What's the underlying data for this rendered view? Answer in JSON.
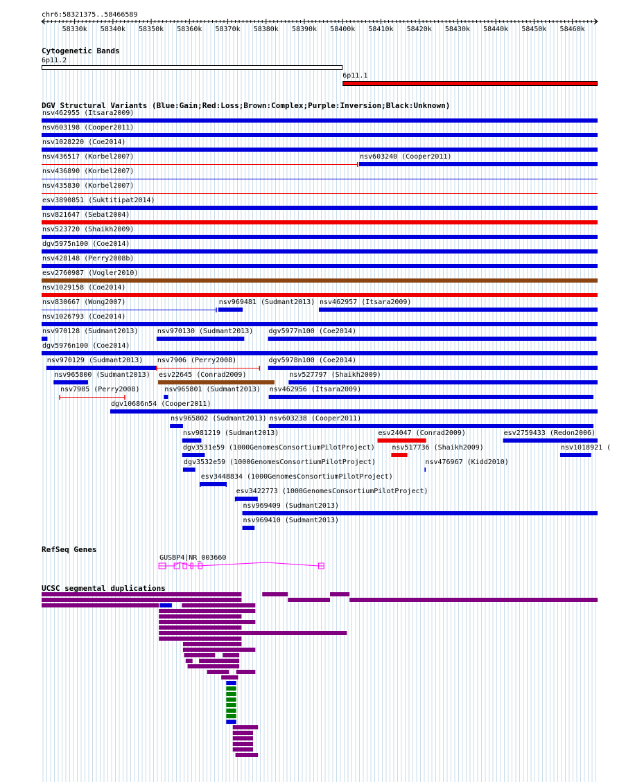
{
  "region": {
    "label": "chr6:58321375..58466589",
    "start": 58321375,
    "end": 58466589,
    "ticks": [
      {
        "pos": 58330000,
        "label": "58330k"
      },
      {
        "pos": 58340000,
        "label": "58340k"
      },
      {
        "pos": 58350000,
        "label": "58350k"
      },
      {
        "pos": 58360000,
        "label": "58360k"
      },
      {
        "pos": 58370000,
        "label": "58370k"
      },
      {
        "pos": 58380000,
        "label": "58380k"
      },
      {
        "pos": 58390000,
        "label": "58390k"
      },
      {
        "pos": 58400000,
        "label": "58400k"
      },
      {
        "pos": 58410000,
        "label": "58410k"
      },
      {
        "pos": 58420000,
        "label": "58420k"
      },
      {
        "pos": 58430000,
        "label": "58430k"
      },
      {
        "pos": 58440000,
        "label": "58440k"
      },
      {
        "pos": 58450000,
        "label": "58450k"
      },
      {
        "pos": 58460000,
        "label": "58460k"
      }
    ]
  },
  "colors": {
    "gain": "#0000dd",
    "loss": "#ee0000",
    "complex": "#8b4513",
    "inversion": "#800080",
    "unknown": "#000000",
    "grid": "#c8dce8",
    "gene": "#ff00ff",
    "segdup_purple": "#800080",
    "segdup_blue": "#0000dd",
    "segdup_green": "#008000",
    "band_loss": "#ee0000"
  },
  "tracks": {
    "cytoband": {
      "title": "Cytogenetic Bands",
      "features": [
        {
          "name": "6p11.2",
          "start": 58321375,
          "end": 58400000,
          "style": "outline"
        },
        {
          "name": "6p11.1",
          "start": 58400000,
          "end": 58466589,
          "style": "filled"
        }
      ]
    },
    "dgv": {
      "title": "DGV Structural Variants (Blue:Gain;Red:Loss;Brown:Complex;Purple:Inversion;Black:Unknown)",
      "features": [
        {
          "name": "nsv462955 (Itsara2009)",
          "start": 58321375,
          "end": 58466589,
          "type": "gain",
          "row": 0
        },
        {
          "name": "nsv603198 (Cooper2011)",
          "start": 58321375,
          "end": 58466589,
          "type": "gain",
          "row": 1
        },
        {
          "name": "nsv1028220 (Coe2014)",
          "start": 58321375,
          "end": 58466589,
          "type": "gain",
          "row": 2
        },
        {
          "name": "nsv436517 (Korbel2007)",
          "start": 58321375,
          "end": 58403900,
          "type": "loss",
          "row": 3,
          "style": "line",
          "endMark": true
        },
        {
          "name": "nsv603240 (Cooper2011)",
          "start": 58404300,
          "end": 58466589,
          "type": "gain",
          "row": 3
        },
        {
          "name": "nsv436890 (Korbel2007)",
          "start": 58321375,
          "end": 58466589,
          "type": "gain",
          "row": 4,
          "style": "line"
        },
        {
          "name": "nsv435830 (Korbel2007)",
          "start": 58321375,
          "end": 58466589,
          "type": "loss",
          "row": 5,
          "style": "line"
        },
        {
          "name": "esv3890851 (Suktitipat2014)",
          "start": 58321375,
          "end": 58466589,
          "type": "gain",
          "row": 6
        },
        {
          "name": "nsv821647 (Sebat2004)",
          "start": 58321375,
          "end": 58466589,
          "type": "loss",
          "row": 7
        },
        {
          "name": "nsv523720 (Shaikh2009)",
          "start": 58321375,
          "end": 58466589,
          "type": "gain",
          "row": 8
        },
        {
          "name": "dgv5975n100 (Coe2014)",
          "start": 58321375,
          "end": 58466589,
          "type": "gain",
          "row": 9
        },
        {
          "name": "nsv428148 (Perry2008b)",
          "start": 58321375,
          "end": 58466589,
          "type": "gain",
          "row": 10
        },
        {
          "name": "esv2760987 (Vogler2010)",
          "start": 58321375,
          "end": 58466589,
          "type": "complex",
          "row": 11
        },
        {
          "name": "nsv1029158 (Coe2014)",
          "start": 58321375,
          "end": 58466589,
          "type": "loss",
          "row": 12
        },
        {
          "name": "nsv830667 (Wong2007)",
          "start": 58321375,
          "end": 58367000,
          "type": "gain",
          "row": 13,
          "style": "line",
          "endMark": true
        },
        {
          "name": "nsv969481 (Sudmant2013)",
          "start": 58367500,
          "end": 58373900,
          "type": "gain",
          "row": 13
        },
        {
          "name": "nsv462957 (Itsara2009)",
          "start": 58393800,
          "end": 58466589,
          "type": "gain",
          "row": 13
        },
        {
          "name": "nsv1026793 (Coe2014)",
          "start": 58321375,
          "end": 58466589,
          "type": "gain",
          "row": 14
        },
        {
          "name": "nsv970128 (Sudmant2013)",
          "start": 58321375,
          "end": 58322900,
          "type": "gain",
          "row": 15
        },
        {
          "name": "nsv970130 (Sudmant2013)",
          "start": 58351400,
          "end": 58374300,
          "type": "gain",
          "row": 15
        },
        {
          "name": "dgv5977n100 (Coe2014)",
          "start": 58380500,
          "end": 58466300,
          "type": "gain",
          "row": 15
        },
        {
          "name": "dgv5976n100 (Coe2014)",
          "start": 58321375,
          "end": 58466589,
          "type": "gain",
          "row": 16
        },
        {
          "name": "nsv970129 (Sudmant2013)",
          "start": 58322600,
          "end": 58351400,
          "type": "gain",
          "row": 17
        },
        {
          "name": "nsv7906 (Perry2008)",
          "start": 58351400,
          "end": 58378300,
          "type": "loss",
          "row": 17,
          "style": "line",
          "endMark": true,
          "startMark": true
        },
        {
          "name": "dgv5978n100 (Coe2014)",
          "start": 58380500,
          "end": 58466589,
          "type": "gain",
          "row": 17
        },
        {
          "name": "nsv965800 (Sudmant2013)",
          "start": 58324500,
          "end": 58333500,
          "type": "gain",
          "row": 18
        },
        {
          "name": "esv22645 (Conrad2009)",
          "start": 58351800,
          "end": 58382200,
          "type": "complex",
          "row": 18
        },
        {
          "name": "nsv527797 (Shaikh2009)",
          "start": 58385900,
          "end": 58466589,
          "type": "gain",
          "row": 18
        },
        {
          "name": "nsv7905 (Perry2008)",
          "start": 58326100,
          "end": 58343100,
          "type": "loss",
          "row": 19,
          "style": "line",
          "endMark": true,
          "startMark": true
        },
        {
          "name": "nsv965801 (Sudmant2013)",
          "start": 58353300,
          "end": 58354400,
          "type": "gain",
          "row": 19
        },
        {
          "name": "nsv462956 (Itsara2009)",
          "start": 58380700,
          "end": 58465500,
          "type": "gain",
          "row": 19
        },
        {
          "name": "dgv10686n54 (Cooper2011)",
          "start": 58339300,
          "end": 58466589,
          "type": "gain",
          "row": 20
        },
        {
          "name": "nsv965802 (Sudmant2013)",
          "start": 58354900,
          "end": 58358300,
          "type": "gain",
          "row": 21
        },
        {
          "name": "nsv603238 (Cooper2011)",
          "start": 58380700,
          "end": 58465500,
          "type": "gain",
          "row": 21
        },
        {
          "name": "nsv981219 (Sudmant2013)",
          "start": 58358100,
          "end": 58363100,
          "type": "gain",
          "row": 22
        },
        {
          "name": "esv24047 (Conrad2009)",
          "start": 58409100,
          "end": 58421800,
          "type": "loss",
          "row": 22
        },
        {
          "name": "esv2759433 (Redon2006)",
          "start": 58441900,
          "end": 58466589,
          "type": "gain",
          "row": 22
        },
        {
          "name": "dgv3531e59 (1000GenomesConsortiumPilotProject)",
          "start": 58358100,
          "end": 58364000,
          "type": "gain",
          "row": 23
        },
        {
          "name": "nsv517736 (Shaikh2009)",
          "start": 58412700,
          "end": 58416900,
          "type": "loss",
          "row": 23
        },
        {
          "name": "nsv1018921 (",
          "start": 58456800,
          "end": 58464900,
          "type": "gain",
          "row": 23
        },
        {
          "name": "dgv3532e59 (1000GenomesConsortiumPilotProject)",
          "start": 58358300,
          "end": 58361500,
          "type": "gain",
          "row": 24
        },
        {
          "name": "nsv476967 (Kidd2010)",
          "start": 58421400,
          "end": 58421700,
          "type": "gain",
          "row": 24
        },
        {
          "name": "esv3448834 (1000GenomesConsortiumPilotProject)",
          "start": 58362800,
          "end": 58369600,
          "type": "gain",
          "row": 25,
          "startMark": true,
          "endMark": true
        },
        {
          "name": "esv3422773 (1000GenomesConsortiumPilotProject)",
          "start": 58372000,
          "end": 58377700,
          "type": "gain",
          "row": 26,
          "startMark": true,
          "endMark": true
        },
        {
          "name": "nsv969409 (Sudmant2013)",
          "start": 58373800,
          "end": 58466589,
          "type": "gain",
          "row": 27
        },
        {
          "name": "nsv969410 (Sudmant2013)",
          "start": 58373800,
          "end": 58377000,
          "type": "gain",
          "row": 28
        }
      ]
    },
    "refseq": {
      "title": "RefSeq Genes",
      "gene": {
        "name": "GUSBP4|NR_003660",
        "start": 58352000,
        "end": 58395100,
        "exons": [
          [
            58352000,
            58353800
          ],
          [
            58356000,
            58357400
          ],
          [
            58358300,
            58359300
          ],
          [
            58360300,
            58360900
          ],
          [
            58362300,
            58363300
          ],
          [
            58393700,
            58395100
          ]
        ]
      }
    },
    "segdup": {
      "title": "UCSC segmental duplications",
      "features": [
        {
          "start": 58321375,
          "end": 58373600,
          "color": "purple",
          "y": 855
        },
        {
          "start": 58379000,
          "end": 58385700,
          "color": "purple",
          "y": 855
        },
        {
          "start": 58396700,
          "end": 58401800,
          "color": "purple",
          "y": 855
        },
        {
          "start": 58321375,
          "end": 58373600,
          "color": "purple",
          "y": 863
        },
        {
          "start": 58385700,
          "end": 58396700,
          "color": "purple",
          "y": 863
        },
        {
          "start": 58401800,
          "end": 58466589,
          "color": "purple",
          "y": 863
        },
        {
          "start": 58321375,
          "end": 58352000,
          "color": "purple",
          "y": 871
        },
        {
          "start": 58352200,
          "end": 58355400,
          "color": "blue",
          "y": 871
        },
        {
          "start": 58358000,
          "end": 58377200,
          "color": "purple",
          "y": 871
        },
        {
          "start": 58352000,
          "end": 58377200,
          "color": "purple",
          "y": 879
        },
        {
          "start": 58352000,
          "end": 58373600,
          "color": "purple",
          "y": 887
        },
        {
          "start": 58352000,
          "end": 58377200,
          "color": "purple",
          "y": 895
        },
        {
          "start": 58352000,
          "end": 58373600,
          "color": "purple",
          "y": 903
        },
        {
          "start": 58352000,
          "end": 58401100,
          "color": "purple",
          "y": 911
        },
        {
          "start": 58352000,
          "end": 58373600,
          "color": "purple",
          "y": 919
        },
        {
          "start": 58358300,
          "end": 58373600,
          "color": "purple",
          "y": 927
        },
        {
          "start": 58358300,
          "end": 58377200,
          "color": "purple",
          "y": 935
        },
        {
          "start": 58358600,
          "end": 58366700,
          "color": "purple",
          "y": 943
        },
        {
          "start": 58368700,
          "end": 58373000,
          "color": "purple",
          "y": 943
        },
        {
          "start": 58359000,
          "end": 58360800,
          "color": "purple",
          "y": 951
        },
        {
          "start": 58362500,
          "end": 58373000,
          "color": "purple",
          "y": 951
        },
        {
          "start": 58359500,
          "end": 58373000,
          "color": "purple",
          "y": 959
        },
        {
          "start": 58364600,
          "end": 58370300,
          "color": "purple",
          "y": 967
        },
        {
          "start": 58372200,
          "end": 58377200,
          "color": "purple",
          "y": 967
        },
        {
          "start": 58368300,
          "end": 58372700,
          "color": "purple",
          "y": 975
        },
        {
          "start": 58369600,
          "end": 58372200,
          "color": "blue",
          "y": 983
        },
        {
          "start": 58369600,
          "end": 58372200,
          "color": "green",
          "y": 991
        },
        {
          "start": 58369600,
          "end": 58372200,
          "color": "green",
          "y": 999
        },
        {
          "start": 58369600,
          "end": 58372200,
          "color": "green",
          "y": 1007
        },
        {
          "start": 58369600,
          "end": 58372200,
          "color": "green",
          "y": 1015
        },
        {
          "start": 58369600,
          "end": 58372200,
          "color": "green",
          "y": 1023
        },
        {
          "start": 58369600,
          "end": 58372200,
          "color": "green",
          "y": 1031
        },
        {
          "start": 58369600,
          "end": 58372200,
          "color": "blue",
          "y": 1039
        },
        {
          "start": 58371300,
          "end": 58377900,
          "color": "purple",
          "y": 1047
        },
        {
          "start": 58371300,
          "end": 58376600,
          "color": "purple",
          "y": 1055
        },
        {
          "start": 58371300,
          "end": 58376600,
          "color": "purple",
          "y": 1063
        },
        {
          "start": 58371300,
          "end": 58376600,
          "color": "purple",
          "y": 1071
        },
        {
          "start": 58371300,
          "end": 58376600,
          "color": "purple",
          "y": 1079
        },
        {
          "start": 58372000,
          "end": 58377900,
          "color": "purple",
          "y": 1087
        }
      ]
    }
  }
}
